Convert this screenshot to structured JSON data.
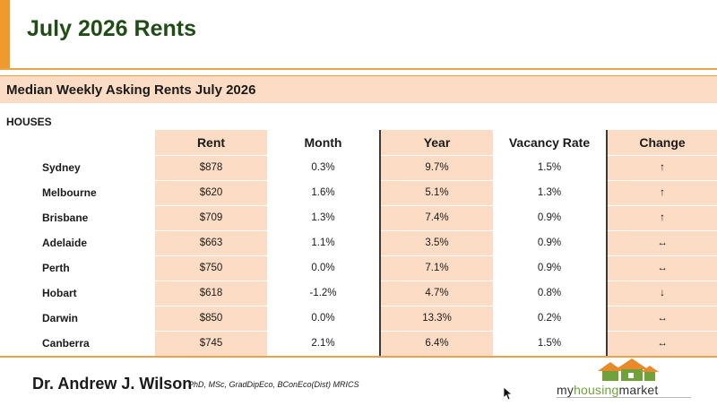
{
  "header": {
    "title": "July 2026 Rents"
  },
  "section": {
    "title": "Median Weekly Asking Rents July 2026"
  },
  "table": {
    "group_label": "HOUSES",
    "columns": [
      "Rent",
      "Month",
      "Year",
      "Vacancy Rate",
      "Change"
    ],
    "rows": [
      {
        "city": "Sydney",
        "rent": "$878",
        "month": "0.3%",
        "year": "9.7%",
        "vacancy": "1.5%",
        "change": "↑"
      },
      {
        "city": "Melbourne",
        "rent": "$620",
        "month": "1.6%",
        "year": "5.1%",
        "vacancy": "1.3%",
        "change": "↑"
      },
      {
        "city": "Brisbane",
        "rent": "$709",
        "month": "1.3%",
        "year": "7.4%",
        "vacancy": "0.9%",
        "change": "↑"
      },
      {
        "city": "Adelaide",
        "rent": "$663",
        "month": "1.1%",
        "year": "3.5%",
        "vacancy": "0.9%",
        "change": "↔"
      },
      {
        "city": "Perth",
        "rent": "$750",
        "month": "0.0%",
        "year": "7.1%",
        "vacancy": "0.9%",
        "change": "↔"
      },
      {
        "city": "Hobart",
        "rent": "$618",
        "month": "-1.2%",
        "year": "4.7%",
        "vacancy": "0.8%",
        "change": "↓"
      },
      {
        "city": "Darwin",
        "rent": "$850",
        "month": "0.0%",
        "year": "13.3%",
        "vacancy": "0.2%",
        "change": "↔"
      },
      {
        "city": "Canberra",
        "rent": "$745",
        "month": "2.1%",
        "year": "6.4%",
        "vacancy": "1.5%",
        "change": "↔"
      }
    ]
  },
  "footer": {
    "author_name": "Dr. Andrew J. Wilson",
    "author_credentials": "PhD, MSc, GradDipEco, BConEco(Dist) MRICS",
    "logo": {
      "part1": "my",
      "part2": "housing",
      "part3": "market"
    }
  },
  "icons": {
    "logo_houses": "house-roofs-icon",
    "cursor": "mouse-pointer-icon"
  },
  "colors": {
    "accent": "#f09a2c",
    "title_green": "#1f4d14",
    "band": "#fcdcc4",
    "logo_green": "#6fa23a",
    "logo_orange": "#e8892a"
  }
}
